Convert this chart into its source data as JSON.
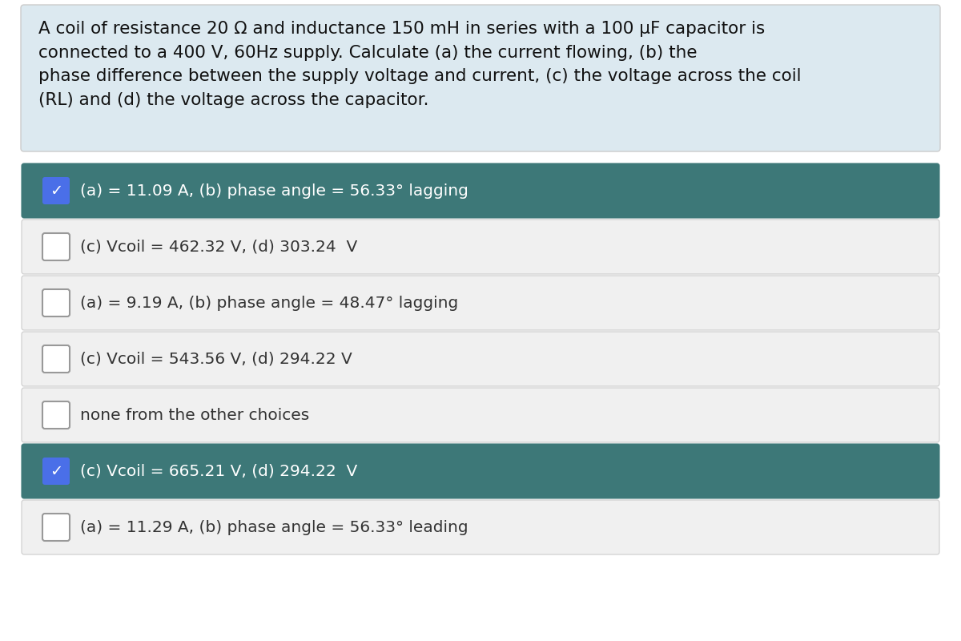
{
  "question": "A coil of resistance 20 Ω and inductance 150 mH in series with a 100 µF capacitor is\nconnected to a 400 V, 60Hz supply. Calculate (a) the current flowing, (b) the\nphase difference between the supply voltage and current, (c) the voltage across the coil\n(RL) and (d) the voltage across the capacitor.",
  "question_bg": "#dce9f0",
  "question_text_color": "#111111",
  "choices": [
    {
      "text": "(a) = 11.09 A, (b) phase angle = 56.33° lagging",
      "selected": true
    },
    {
      "text": "(c) Vcoil = 462.32 V, (d) 303.24  V",
      "selected": false
    },
    {
      "text": "(a) = 9.19 A, (b) phase angle = 48.47° lagging",
      "selected": false
    },
    {
      "text": "(c) Vcoil = 543.56 V, (d) 294.22 V",
      "selected": false
    },
    {
      "text": "none from the other choices",
      "selected": false
    },
    {
      "text": "(c) Vcoil = 665.21 V, (d) 294.22  V",
      "selected": true
    },
    {
      "text": "(a) = 11.29 A, (b) phase angle = 56.33° leading",
      "selected": false
    }
  ],
  "selected_bg": "#3d7878",
  "unselected_bg": "#f0f0f0",
  "selected_text_color": "#ffffff",
  "unselected_text_color": "#333333",
  "check_icon_color": "#4a6fe8",
  "check_text_color": "#ffffff",
  "unselected_icon_border": "#999999",
  "unselected_icon_bg": "#ffffff",
  "bg_color": "#ffffff",
  "border_color": "#cccccc",
  "font_size_question": 15.5,
  "font_size_choices": 14.5,
  "font_size_check": 14
}
